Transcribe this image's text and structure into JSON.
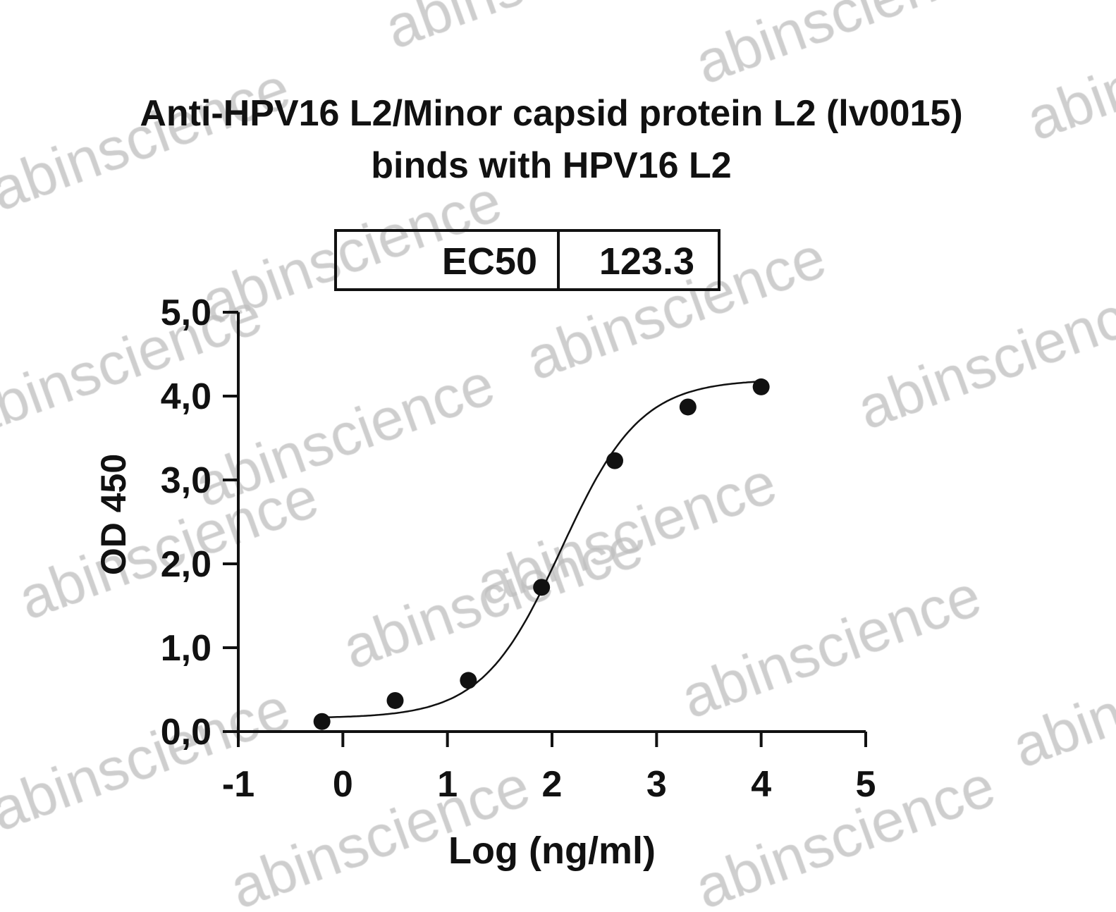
{
  "watermark": "abinscience",
  "chart_data": {
    "type": "scatter",
    "title": [
      "Anti-HPV16 L2/Minor capsid protein L2 (lv0015)",
      "binds with HPV16 L2"
    ],
    "xlabel": "Log (ng/ml)",
    "ylabel": "OD 450",
    "xlim": [
      -1,
      5
    ],
    "ylim": [
      0,
      5
    ],
    "xticks": [
      "-1",
      "0",
      "1",
      "2",
      "3",
      "4",
      "5"
    ],
    "yticks": [
      "0,0",
      "1,0",
      "2,0",
      "3,0",
      "4,0",
      "5,0"
    ],
    "grid": false,
    "legend_table": {
      "label": "EC50",
      "value": "123.3"
    },
    "points": {
      "x": [
        -0.2,
        0.5,
        1.2,
        1.9,
        2.6,
        3.3,
        4.0
      ],
      "y": [
        0.12,
        0.37,
        0.61,
        1.72,
        3.23,
        3.87,
        4.11
      ]
    },
    "fit_curve": {
      "model": "4PL",
      "bottom": 0.16,
      "top": 4.2,
      "log_ec50": 2.09,
      "hill": 1.15
    },
    "colors": {
      "points": "#111111",
      "curve": "#111111"
    }
  }
}
